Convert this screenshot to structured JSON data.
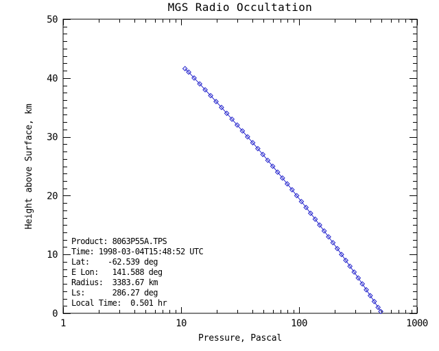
{
  "window": {
    "background": "#ffffff",
    "foreground": "#000000"
  },
  "chart_data": {
    "type": "line",
    "title": "MGS Radio Occultation",
    "xlabel": "Pressure, Pascal",
    "ylabel": "Height above Surface, km",
    "x_scale": "log",
    "y_scale": "linear",
    "xlim": [
      1,
      1000
    ],
    "ylim": [
      0,
      50
    ],
    "x_major_ticks": [
      1,
      10,
      100,
      1000
    ],
    "x_tick_labels": [
      "1",
      "10",
      "100",
      "1000"
    ],
    "y_major_ticks": [
      0,
      10,
      20,
      30,
      40,
      50
    ],
    "y_tick_labels": [
      "0",
      "10",
      "20",
      "30",
      "40",
      "50"
    ],
    "y_minor_interval": 1.25,
    "grid": false,
    "legend": "none",
    "marker": "open-diamond",
    "line_color": "#2222CC",
    "axis_color": "#000000",
    "series": [
      {
        "name": "pressure-height-profile",
        "points_format": [
          "pressure_pascal",
          "height_km"
        ],
        "points": [
          [
            10.8,
            41.6
          ],
          [
            11.6,
            41
          ],
          [
            12.9,
            40
          ],
          [
            14.4,
            39
          ],
          [
            16.0,
            38
          ],
          [
            17.8,
            37
          ],
          [
            19.8,
            36
          ],
          [
            22.0,
            35
          ],
          [
            24.4,
            34
          ],
          [
            27.0,
            33
          ],
          [
            29.9,
            32
          ],
          [
            33.1,
            31
          ],
          [
            36.6,
            30
          ],
          [
            40.5,
            29
          ],
          [
            44.7,
            28
          ],
          [
            49.3,
            27
          ],
          [
            54.3,
            26
          ],
          [
            59.8,
            25
          ],
          [
            65.8,
            24
          ],
          [
            72.3,
            23
          ],
          [
            79.4,
            22
          ],
          [
            87.2,
            21
          ],
          [
            95.6,
            20
          ],
          [
            104.7,
            19
          ],
          [
            114.6,
            18
          ],
          [
            125.3,
            17
          ],
          [
            137.0,
            16
          ],
          [
            149.5,
            15
          ],
          [
            163.2,
            14
          ],
          [
            177.8,
            13
          ],
          [
            193.7,
            12
          ],
          [
            210.7,
            11
          ],
          [
            229.0,
            10
          ],
          [
            248.9,
            9
          ],
          [
            270.1,
            8
          ],
          [
            292.8,
            7
          ],
          [
            317.3,
            6
          ],
          [
            343.5,
            5
          ],
          [
            371.5,
            4
          ],
          [
            401.5,
            3
          ],
          [
            433.5,
            2
          ],
          [
            467.6,
            1
          ],
          [
            492.8,
            0.3
          ]
        ]
      }
    ]
  },
  "annotation": {
    "lines": [
      "Product: 8063P55A.TPS",
      "Time: 1998-03-04T15:48:52 UTC",
      "Lat:    -62.539 deg",
      "E Lon:   141.588 deg",
      "Radius:  3383.67 km",
      "Ls:      286.27 deg",
      "Local Time:  0.501 hr"
    ]
  }
}
